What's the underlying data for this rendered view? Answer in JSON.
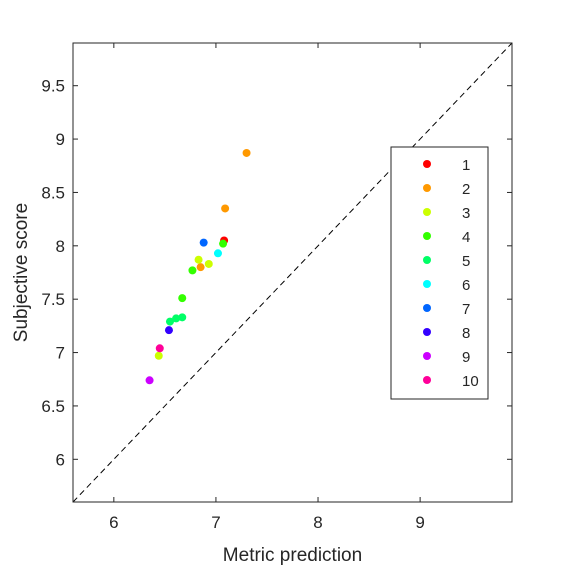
{
  "chart_data": {
    "type": "scatter",
    "xlabel": "Metric prediction",
    "ylabel": "Subjective score",
    "xlim": [
      5.6,
      9.9
    ],
    "ylim": [
      5.6,
      9.9
    ],
    "x_ticks": [
      6,
      7,
      8,
      9
    ],
    "y_ticks": [
      6,
      6.5,
      7,
      7.5,
      8,
      8.5,
      9,
      9.5
    ],
    "x_tick_labels": [
      "6",
      "7",
      "8",
      "9"
    ],
    "y_tick_labels": [
      "6",
      "6.5",
      "7",
      "7.5",
      "8",
      "8.5",
      "9",
      "9.5"
    ],
    "reference_line": "dashed diagonal y = x",
    "grid": false,
    "legend_position": "right",
    "series": [
      {
        "name": "1",
        "color": "#ff0000",
        "points": [
          [
            7.08,
            8.05
          ]
        ]
      },
      {
        "name": "2",
        "color": "#ff9900",
        "points": [
          [
            7.3,
            8.87
          ],
          [
            7.09,
            8.35
          ],
          [
            6.85,
            7.8
          ]
        ]
      },
      {
        "name": "3",
        "color": "#ccff00",
        "points": [
          [
            6.83,
            7.87
          ],
          [
            6.93,
            7.83
          ],
          [
            6.44,
            6.97
          ]
        ]
      },
      {
        "name": "4",
        "color": "#33ff00",
        "points": [
          [
            6.77,
            7.77
          ],
          [
            6.67,
            7.51
          ],
          [
            7.07,
            8.02
          ]
        ]
      },
      {
        "name": "5",
        "color": "#00ff66",
        "points": [
          [
            6.55,
            7.29
          ],
          [
            6.61,
            7.32
          ],
          [
            6.67,
            7.33
          ]
        ]
      },
      {
        "name": "6",
        "color": "#00ffff",
        "points": [
          [
            7.02,
            7.93
          ]
        ]
      },
      {
        "name": "7",
        "color": "#0066ff",
        "points": [
          [
            6.88,
            8.03
          ]
        ]
      },
      {
        "name": "8",
        "color": "#3300ff",
        "points": [
          [
            6.54,
            7.21
          ]
        ]
      },
      {
        "name": "9",
        "color": "#cc00ff",
        "points": [
          [
            6.35,
            6.74
          ]
        ]
      },
      {
        "name": "10",
        "color": "#ff0099",
        "points": [
          [
            6.45,
            7.04
          ]
        ]
      }
    ]
  }
}
